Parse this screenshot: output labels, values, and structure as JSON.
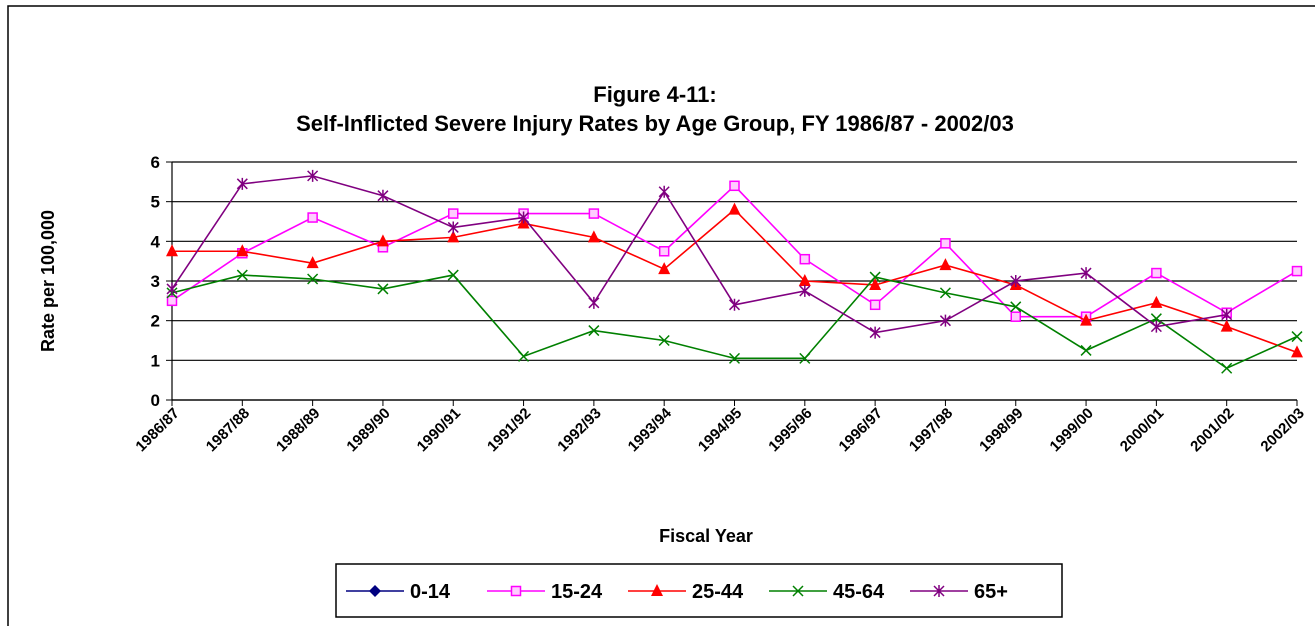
{
  "chart_data": {
    "type": "line",
    "title": "Figure 4-11:",
    "subtitle": "Self-Inflicted Severe Injury Rates by Age Group, FY 1986/87 - 2002/03",
    "x_label": "Fiscal Year",
    "y_label": "Rate per 100,000",
    "categories": [
      "1986/87",
      "1987/88",
      "1988/89",
      "1989/90",
      "1990/91",
      "1991/92",
      "1992/93",
      "1993/94",
      "1994/95",
      "1995/96",
      "1996/97",
      "1997/98",
      "1998/99",
      "1999/00",
      "2000/01",
      "2001/02",
      "2002/03"
    ],
    "series": [
      {
        "name": "0-14",
        "color": "#000080",
        "marker": "diamond",
        "values": [
          null,
          null,
          null,
          null,
          null,
          null,
          null,
          null,
          null,
          null,
          null,
          null,
          null,
          null,
          null,
          null,
          null
        ]
      },
      {
        "name": "15-24",
        "color": "#ff00ff",
        "marker": "square",
        "values": [
          2.5,
          3.7,
          4.6,
          3.85,
          4.7,
          4.7,
          4.7,
          3.75,
          5.4,
          3.55,
          2.4,
          3.95,
          2.1,
          2.1,
          3.2,
          2.2,
          3.25
        ]
      },
      {
        "name": "25-44",
        "color": "#ff0000",
        "marker": "triangle",
        "values": [
          3.75,
          3.75,
          3.45,
          4.0,
          4.1,
          4.45,
          4.1,
          3.3,
          4.8,
          3.0,
          2.9,
          3.4,
          2.9,
          2.0,
          2.45,
          1.85,
          1.2
        ]
      },
      {
        "name": "45-64",
        "color": "#008000",
        "marker": "x",
        "values": [
          2.7,
          3.15,
          3.05,
          2.8,
          3.15,
          1.1,
          1.75,
          1.5,
          1.05,
          1.05,
          3.1,
          2.7,
          2.35,
          1.25,
          2.05,
          0.8,
          1.6
        ]
      },
      {
        "name": "65+",
        "color": "#800080",
        "marker": "star",
        "values": [
          2.8,
          5.45,
          5.65,
          5.15,
          4.35,
          4.6,
          2.45,
          5.25,
          2.4,
          2.75,
          1.7,
          2.0,
          3.0,
          3.2,
          1.85,
          2.15,
          null
        ]
      }
    ],
    "ylim": [
      0,
      6
    ],
    "yticks": [
      0,
      1,
      2,
      3,
      4,
      5,
      6
    ],
    "grid": true
  }
}
